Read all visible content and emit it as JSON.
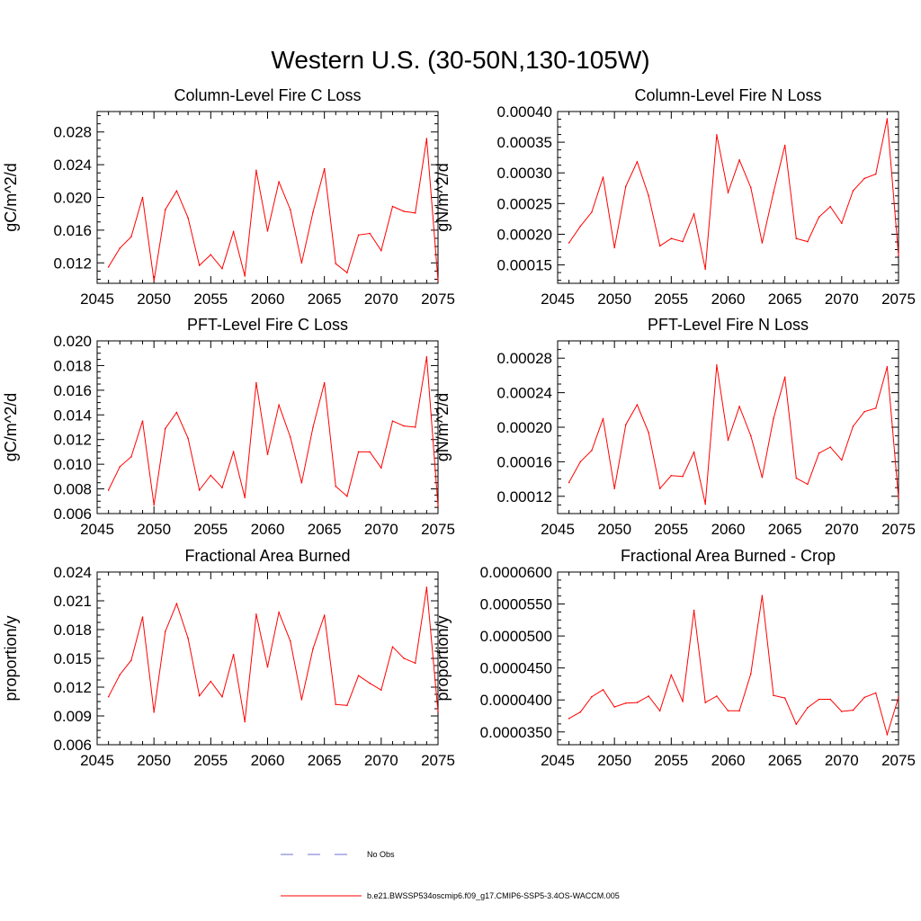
{
  "figure_title": "Western U.S. (30-50N,130-105W)",
  "colors": {
    "model": "#ff0000",
    "obs": "#6f6fd6",
    "frame": "#000000"
  },
  "legend": {
    "obs_label": "No Obs",
    "model_label": "b.e21.BWSSP534oscmip6.f09_g17.CMIP6-SSP5-3.4OS-WACCM.005"
  },
  "chart_data": [
    {
      "type": "line",
      "title": "Column-Level Fire C Loss",
      "ylabel": "gC/m^2/d",
      "xlim": [
        2045,
        2075
      ],
      "xticks": [
        2045,
        2050,
        2055,
        2060,
        2065,
        2070,
        2075
      ],
      "ylim": [
        0.0095,
        0.0305
      ],
      "yticks": [
        0.012,
        0.016,
        0.02,
        0.024,
        0.028
      ],
      "yticklabels": [
        "0.012",
        "0.016",
        "0.020",
        "0.024",
        "0.028"
      ],
      "series": [
        {
          "name": "b.e21.BWSSP534oscmip6.f09_g17.CMIP6-SSP5-3.4OS-WACCM.005",
          "x": [
            2046,
            2047,
            2048,
            2049,
            2050,
            2051,
            2052,
            2053,
            2054,
            2055,
            2056,
            2057,
            2058,
            2059,
            2060,
            2061,
            2062,
            2063,
            2064,
            2065,
            2066,
            2067,
            2068,
            2069,
            2070,
            2071,
            2072,
            2073,
            2074,
            2075
          ],
          "values": [
            0.0115,
            0.0138,
            0.0152,
            0.02,
            0.0098,
            0.0185,
            0.0208,
            0.0175,
            0.0117,
            0.013,
            0.0113,
            0.0158,
            0.0104,
            0.0233,
            0.0159,
            0.0219,
            0.0185,
            0.012,
            0.0182,
            0.0235,
            0.0119,
            0.0108,
            0.0154,
            0.0156,
            0.0135,
            0.0189,
            0.0183,
            0.0181,
            0.0272,
            0.0098
          ]
        }
      ]
    },
    {
      "type": "line",
      "title": "Column-Level Fire N Loss",
      "ylabel": "gN/m^2/d",
      "xlim": [
        2045,
        2075
      ],
      "xticks": [
        2045,
        2050,
        2055,
        2060,
        2065,
        2070,
        2075
      ],
      "ylim": [
        0.00012,
        0.0004
      ],
      "yticks": [
        0.00015,
        0.0002,
        0.00025,
        0.0003,
        0.00035,
        0.0004
      ],
      "yticklabels": [
        "0.00015",
        "0.00020",
        "0.00025",
        "0.00030",
        "0.00035",
        "0.00040"
      ],
      "series": [
        {
          "name": "b.e21.BWSSP534oscmip6.f09_g17.CMIP6-SSP5-3.4OS-WACCM.005",
          "x": [
            2046,
            2047,
            2048,
            2049,
            2050,
            2051,
            2052,
            2053,
            2054,
            2055,
            2056,
            2057,
            2058,
            2059,
            2060,
            2061,
            2062,
            2063,
            2064,
            2065,
            2066,
            2067,
            2068,
            2069,
            2070,
            2071,
            2072,
            2073,
            2074,
            2075
          ],
          "values": [
            0.000186,
            0.000213,
            0.000236,
            0.000293,
            0.000178,
            0.000278,
            0.000318,
            0.000263,
            0.000181,
            0.000193,
            0.000188,
            0.000233,
            0.000143,
            0.000362,
            0.000268,
            0.000321,
            0.000276,
            0.000186,
            0.000268,
            0.000345,
            0.000193,
            0.000188,
            0.000228,
            0.000245,
            0.000218,
            0.000271,
            0.000291,
            0.000298,
            0.000388,
            0.000165
          ]
        }
      ]
    },
    {
      "type": "line",
      "title": "PFT-Level Fire C Loss",
      "ylabel": "gC/m^2/d",
      "xlim": [
        2045,
        2075
      ],
      "xticks": [
        2045,
        2050,
        2055,
        2060,
        2065,
        2070,
        2075
      ],
      "ylim": [
        0.006,
        0.02
      ],
      "yticks": [
        0.006,
        0.008,
        0.01,
        0.012,
        0.014,
        0.016,
        0.018,
        0.02
      ],
      "yticklabels": [
        "0.006",
        "0.008",
        "0.010",
        "0.012",
        "0.014",
        "0.016",
        "0.018",
        "0.020"
      ],
      "series": [
        {
          "name": "b.e21.BWSSP534oscmip6.f09_g17.CMIP6-SSP5-3.4OS-WACCM.005",
          "x": [
            2046,
            2047,
            2048,
            2049,
            2050,
            2051,
            2052,
            2053,
            2054,
            2055,
            2056,
            2057,
            2058,
            2059,
            2060,
            2061,
            2062,
            2063,
            2064,
            2065,
            2066,
            2067,
            2068,
            2069,
            2070,
            2071,
            2072,
            2073,
            2074,
            2075
          ],
          "values": [
            0.0079,
            0.0098,
            0.0106,
            0.0135,
            0.0067,
            0.0129,
            0.0142,
            0.0121,
            0.0079,
            0.0091,
            0.0081,
            0.011,
            0.0073,
            0.0166,
            0.0108,
            0.0148,
            0.0122,
            0.0085,
            0.013,
            0.0166,
            0.0082,
            0.0074,
            0.011,
            0.011,
            0.0097,
            0.0135,
            0.0131,
            0.013,
            0.0187,
            0.0066
          ]
        }
      ]
    },
    {
      "type": "line",
      "title": "PFT-Level Fire N Loss",
      "ylabel": "gN/m^2/d",
      "xlim": [
        2045,
        2075
      ],
      "xticks": [
        2045,
        2050,
        2055,
        2060,
        2065,
        2070,
        2075
      ],
      "ylim": [
        0.0001,
        0.0003
      ],
      "yticks": [
        0.00012,
        0.00016,
        0.0002,
        0.00024,
        0.00028
      ],
      "yticklabels": [
        "0.00012",
        "0.00016",
        "0.00020",
        "0.00024",
        "0.00028"
      ],
      "series": [
        {
          "name": "b.e21.BWSSP534oscmip6.f09_g17.CMIP6-SSP5-3.4OS-WACCM.005",
          "x": [
            2046,
            2047,
            2048,
            2049,
            2050,
            2051,
            2052,
            2053,
            2054,
            2055,
            2056,
            2057,
            2058,
            2059,
            2060,
            2061,
            2062,
            2063,
            2064,
            2065,
            2066,
            2067,
            2068,
            2069,
            2070,
            2071,
            2072,
            2073,
            2074,
            2075
          ],
          "values": [
            0.000136,
            0.00016,
            0.000173,
            0.00021,
            0.000129,
            0.000203,
            0.000226,
            0.000194,
            0.000129,
            0.000144,
            0.000143,
            0.000171,
            0.000111,
            0.000272,
            0.000185,
            0.000224,
            0.00019,
            0.000142,
            0.00021,
            0.000258,
            0.000141,
            0.000134,
            0.00017,
            0.000177,
            0.000162,
            0.000201,
            0.000218,
            0.000222,
            0.00027,
            0.000118
          ]
        }
      ]
    },
    {
      "type": "line",
      "title": "Fractional Area Burned",
      "ylabel": "proportion/y",
      "xlim": [
        2045,
        2075
      ],
      "xticks": [
        2045,
        2050,
        2055,
        2060,
        2065,
        2070,
        2075
      ],
      "ylim": [
        0.006,
        0.024
      ],
      "yticks": [
        0.006,
        0.009,
        0.012,
        0.015,
        0.018,
        0.021,
        0.024
      ],
      "yticklabels": [
        "0.006",
        "0.009",
        "0.012",
        "0.015",
        "0.018",
        "0.021",
        "0.024"
      ],
      "series": [
        {
          "name": "b.e21.BWSSP534oscmip6.f09_g17.CMIP6-SSP5-3.4OS-WACCM.005",
          "x": [
            2046,
            2047,
            2048,
            2049,
            2050,
            2051,
            2052,
            2053,
            2054,
            2055,
            2056,
            2057,
            2058,
            2059,
            2060,
            2061,
            2062,
            2063,
            2064,
            2065,
            2066,
            2067,
            2068,
            2069,
            2070,
            2071,
            2072,
            2073,
            2074,
            2075
          ],
          "values": [
            0.011,
            0.0133,
            0.0148,
            0.0193,
            0.0094,
            0.0178,
            0.0207,
            0.0171,
            0.0111,
            0.0126,
            0.011,
            0.0154,
            0.0084,
            0.0196,
            0.0141,
            0.0198,
            0.0168,
            0.0107,
            0.016,
            0.0195,
            0.0102,
            0.0101,
            0.0132,
            0.0124,
            0.0117,
            0.0162,
            0.015,
            0.0145,
            0.0224,
            0.0094
          ]
        }
      ]
    },
    {
      "type": "line",
      "title": "Fractional Area Burned - Crop",
      "ylabel": "proportion/y",
      "xlim": [
        2045,
        2075
      ],
      "xticks": [
        2045,
        2050,
        2055,
        2060,
        2065,
        2070,
        2075
      ],
      "ylim": [
        3.3e-05,
        6e-05
      ],
      "yticks": [
        3.5e-05,
        4e-05,
        4.5e-05,
        5e-05,
        5.5e-05,
        6e-05
      ],
      "yticklabels": [
        "0.0000350",
        "0.0000400",
        "0.0000450",
        "0.0000500",
        "0.0000550",
        "0.0000600"
      ],
      "series": [
        {
          "name": "b.e21.BWSSP534oscmip6.f09_g17.CMIP6-SSP5-3.4OS-WACCM.005",
          "x": [
            2046,
            2047,
            2048,
            2049,
            2050,
            2051,
            2052,
            2053,
            2054,
            2055,
            2056,
            2057,
            2058,
            2059,
            2060,
            2061,
            2062,
            2063,
            2064,
            2065,
            2066,
            2067,
            2068,
            2069,
            2070,
            2071,
            2072,
            2073,
            2074,
            2075
          ],
          "values": [
            3.71e-05,
            3.81e-05,
            4.05e-05,
            4.16e-05,
            3.89e-05,
            3.95e-05,
            3.96e-05,
            4.06e-05,
            3.83e-05,
            4.39e-05,
            3.98e-05,
            5.4e-05,
            3.96e-05,
            4.06e-05,
            3.83e-05,
            3.83e-05,
            4.41e-05,
            5.63e-05,
            4.07e-05,
            4.03e-05,
            3.62e-05,
            3.88e-05,
            4.01e-05,
            4.01e-05,
            3.82e-05,
            3.84e-05,
            4.04e-05,
            4.11e-05,
            3.46e-05,
            4.04e-05
          ]
        }
      ]
    }
  ]
}
